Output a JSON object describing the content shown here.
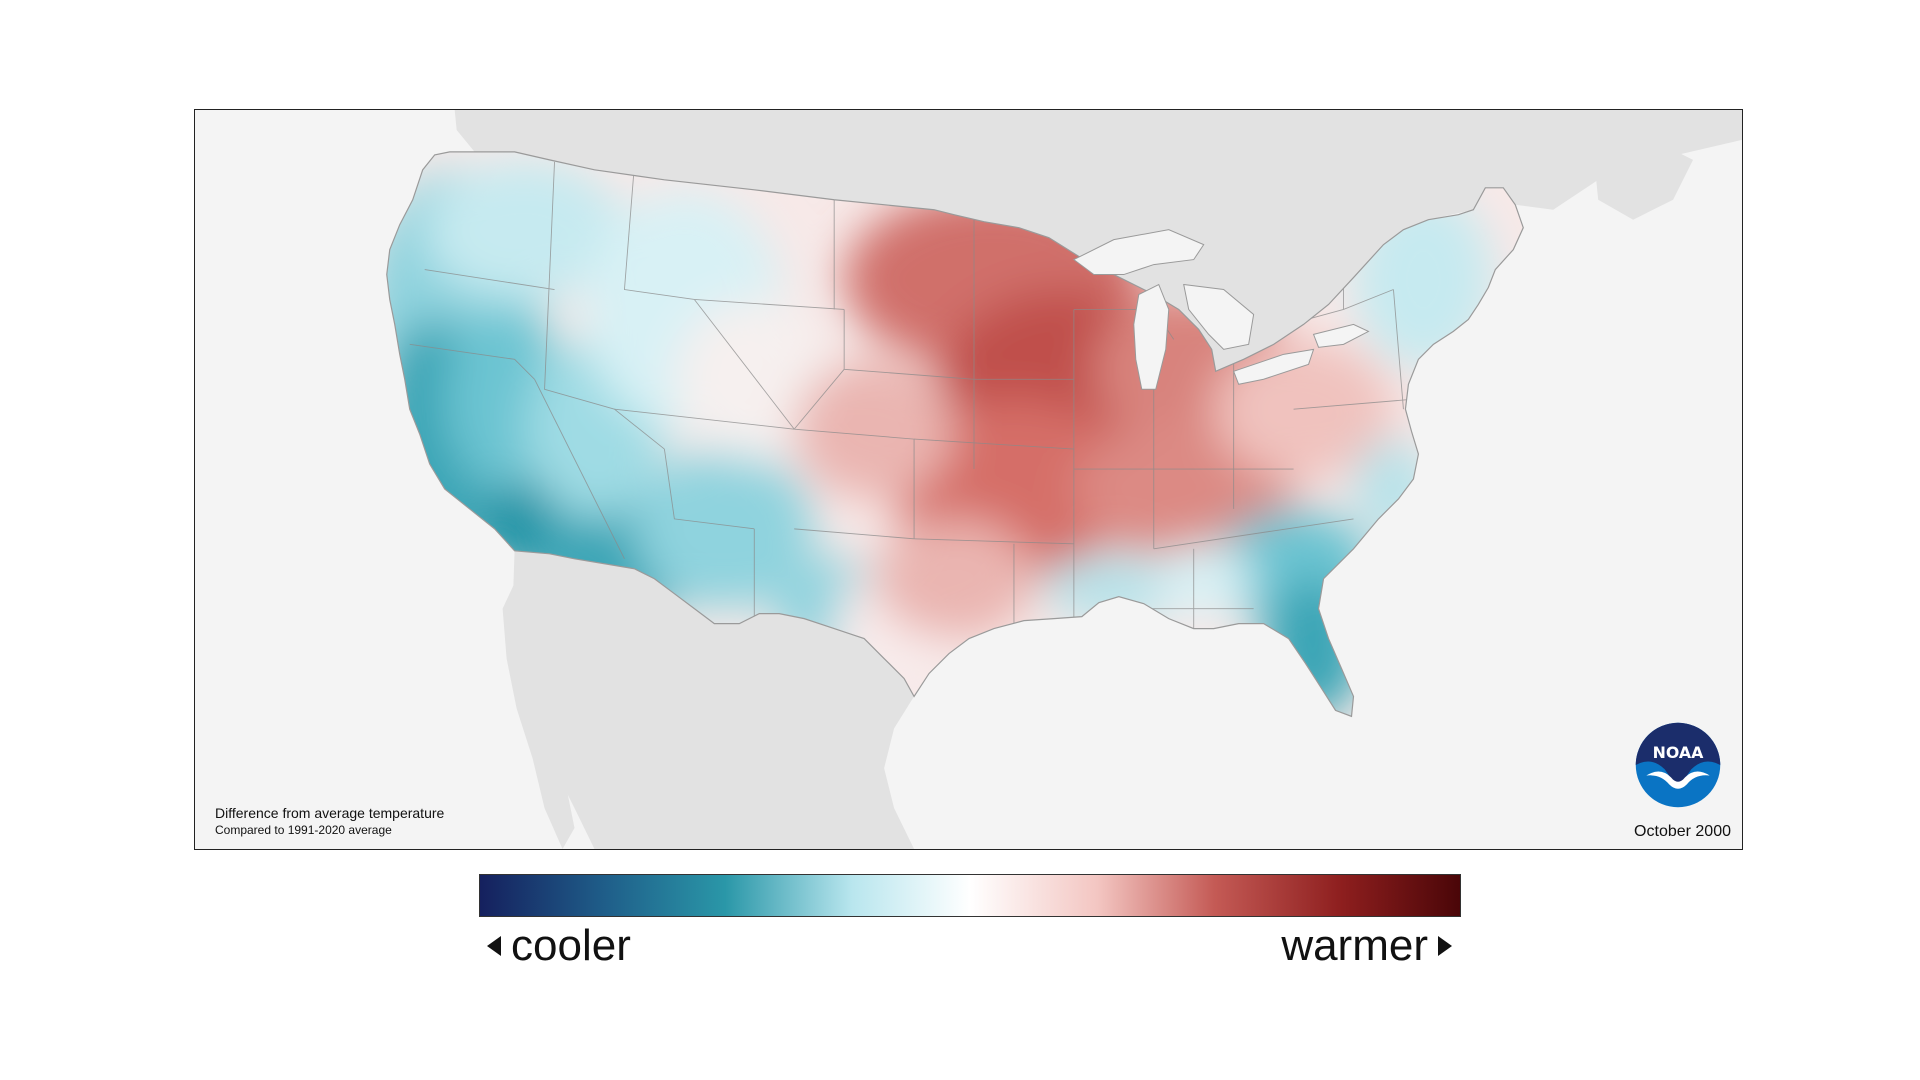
{
  "map": {
    "caption_title": "Difference from average temperature",
    "caption_subtitle": "Compared to 1991-2020 average",
    "date": "October 2000",
    "logo_text": "NOAA",
    "colors": {
      "ocean": "#f4f4f4",
      "land_outside": "#e2e2e2",
      "cool_strong": "#1a8a9c",
      "cool_mid": "#6cc4d2",
      "cool_light": "#c6eaf0",
      "neutral": "#fdf6f5",
      "warm_light": "#f2c4c0",
      "warm_mid": "#dc7f78",
      "warm_strong": "#c0504b",
      "state_border": "#8a8a8a"
    }
  },
  "legend": {
    "cooler_label": "cooler",
    "warmer_label": "warmer",
    "colors": [
      "#15205e",
      "#1f5f8a",
      "#2a97a8",
      "#b9e6ee",
      "#ffffff",
      "#f3c6c2",
      "#c45a55",
      "#8d1e1e",
      "#4a0608"
    ]
  }
}
